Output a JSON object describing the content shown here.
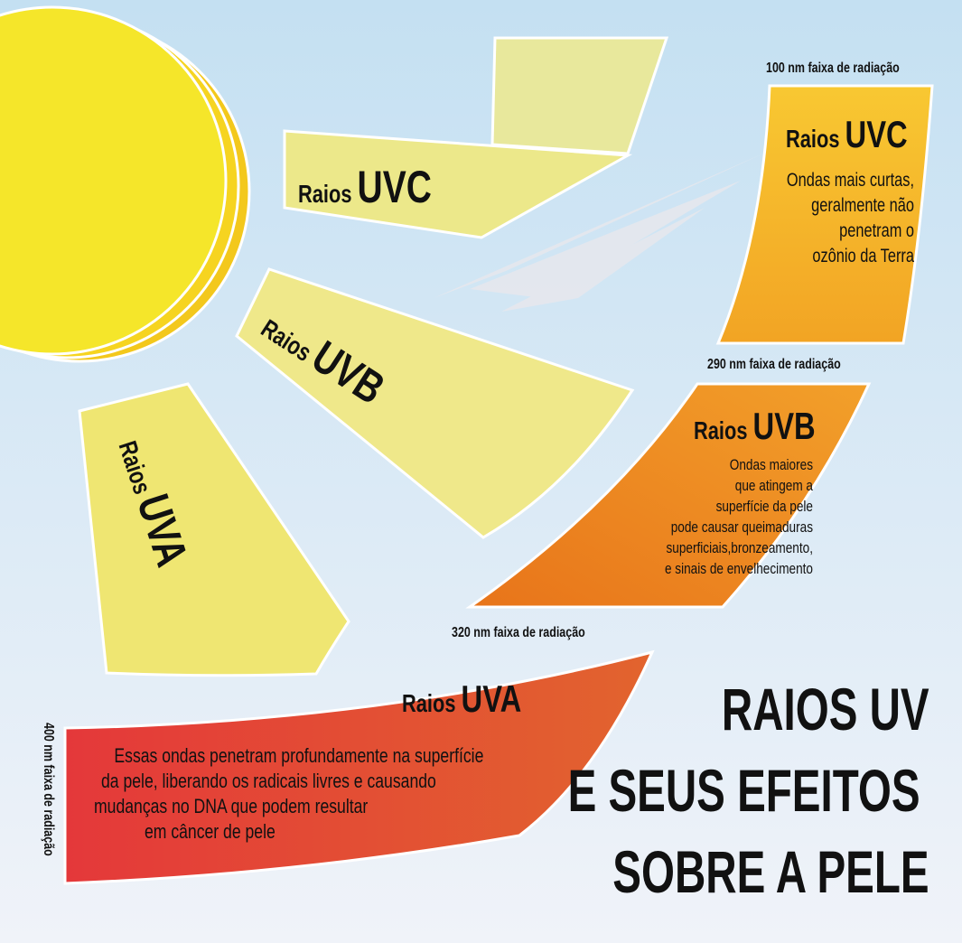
{
  "colors": {
    "sun": "#f5e62a",
    "sun_back": "#f3c81c",
    "ray_light": "#ecea94",
    "ray": "#efe87e",
    "band_uvc": "#f6b62c",
    "band_uvb": "#ee8a1e",
    "band_uva": "#e4403a",
    "sky_top": "#c4e0f2",
    "sky_bottom": "#f0f3f9"
  },
  "rays": {
    "uvc": {
      "prefix": "Raios",
      "name": "UVC"
    },
    "uvb": {
      "prefix": "Raios",
      "name": "UVB"
    },
    "uva": {
      "prefix": "Raios",
      "name": "UVA"
    }
  },
  "bands": {
    "uvc": {
      "range": "100 nm faixa de radiação",
      "prefix": "Raios",
      "name": "UVC",
      "lines": [
        "Ondas mais curtas,",
        "geralmente não",
        "penetram o",
        "ozônio da Terra"
      ]
    },
    "uvb": {
      "range": "290 nm faixa de radiação",
      "prefix": "Raios",
      "name": "UVB",
      "lines": [
        "Ondas maiores",
        "que atingem a",
        "superfície da pele",
        "pode causar queimaduras",
        "superficiais,bronzeamento,",
        "e sinais de envelhecimento"
      ]
    },
    "uva": {
      "range": "320 nm faixa de radiação",
      "prefix": "Raios",
      "name": "UVA",
      "lines": [
        "Essas ondas penetram profundamente na superfície",
        "da pele, liberando os radicais livres e causando",
        "mudanças no DNA que podem resultar",
        "em câncer de pele"
      ]
    },
    "end_range": "400 nm faixa de radiação"
  },
  "title": {
    "lines": [
      "RAIOS UV",
      "E SEUS EFEITOS",
      "SOBRE A PELE"
    ]
  }
}
